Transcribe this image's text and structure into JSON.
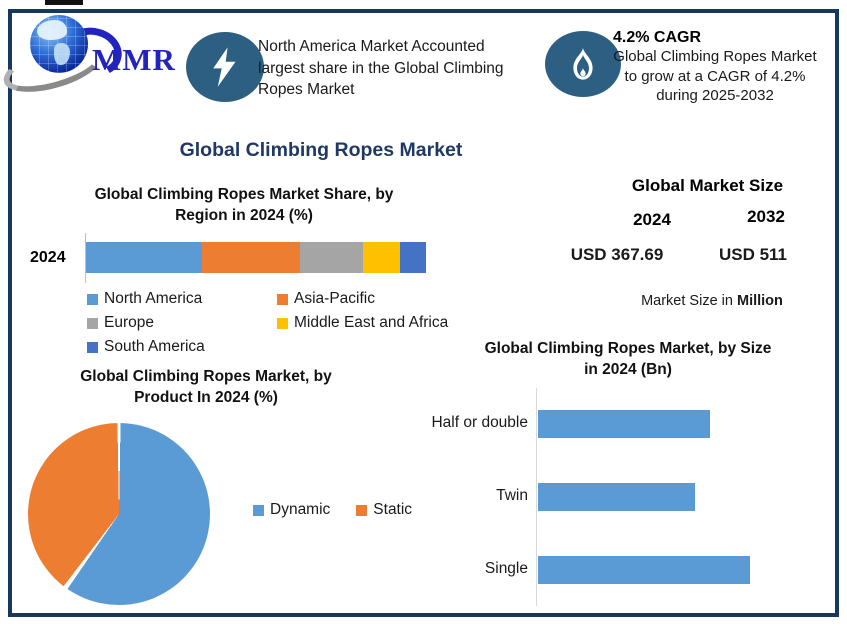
{
  "frame": {
    "border_color": "#17375D"
  },
  "logo": {
    "text": "MMR",
    "color": "#2323BF"
  },
  "highlight_left": {
    "icon": "lightning-icon",
    "icon_bg": "#2D5F82",
    "lines": [
      "North America Market Accounted",
      "largest share in the Global Climbing",
      "Ropes Market"
    ]
  },
  "highlight_right": {
    "icon": "flame-icon",
    "icon_bg": "#2D5F82",
    "heading": "4.2% CAGR",
    "lines": [
      "Global Climbing Ropes Market",
      "to grow at a CAGR of 4.2%",
      "during 2025-2032"
    ]
  },
  "main_title": "Global Climbing Ropes Market",
  "market_size": {
    "title": "Global Market Size",
    "year_left": "2024",
    "year_right": "2032",
    "value_left": "USD 367.69",
    "value_right": "USD 511",
    "value_color": "#0070C0",
    "note_prefix": "Market Size in ",
    "note_bold": "Million"
  },
  "chart_data": [
    {
      "id": "region",
      "type": "bar",
      "subtype": "stacked-horizontal",
      "title": "Global Climbing Ropes Market Share, by Region in 2024 (%)",
      "title_lines": [
        "Global Climbing Ropes Market Share, by",
        "Region in 2024 (%)"
      ],
      "categories": [
        "2024"
      ],
      "series": [
        {
          "name": "North America",
          "color": "#5B9BD5",
          "values": [
            34
          ]
        },
        {
          "name": "Asia-Pacific",
          "color": "#ED7D31",
          "values": [
            29
          ]
        },
        {
          "name": "Europe",
          "color": "#A5A5A5",
          "values": [
            18.5
          ]
        },
        {
          "name": "Middle East and Africa",
          "color": "#FFC000",
          "values": [
            11
          ]
        },
        {
          "name": "South America",
          "color": "#4472C4",
          "values": [
            7.5
          ]
        }
      ],
      "xlim": [
        0,
        100
      ],
      "legend_position": "bottom",
      "grid": false
    },
    {
      "id": "product",
      "type": "pie",
      "title": "Global Climbing Ropes Market, by Product  In 2024 (%)",
      "title_lines": [
        "Global Climbing Ropes Market, by",
        "Product  In 2024 (%)"
      ],
      "labels": [
        "Dynamic",
        "Static"
      ],
      "values": [
        60,
        40
      ],
      "colors": [
        "#5B9BD5",
        "#ED7D31"
      ],
      "start_angle_deg": 0,
      "direction": "clockwise",
      "legend_position": "right"
    },
    {
      "id": "size",
      "type": "bar",
      "subtype": "horizontal",
      "title": "Global Climbing Ropes Market, by Size in 2024 (Bn)",
      "title_lines": [
        "Global Climbing Ropes Market, by Size",
        "in 2024 (Bn)"
      ],
      "categories": [
        "Half or double",
        "Twin",
        "Single"
      ],
      "values": [
        0.81,
        0.74,
        1.0
      ],
      "bar_color": "#5B9BD5",
      "xlim": [
        0,
        1.38
      ],
      "axis_value_labels_visible": false,
      "grid": false
    }
  ]
}
